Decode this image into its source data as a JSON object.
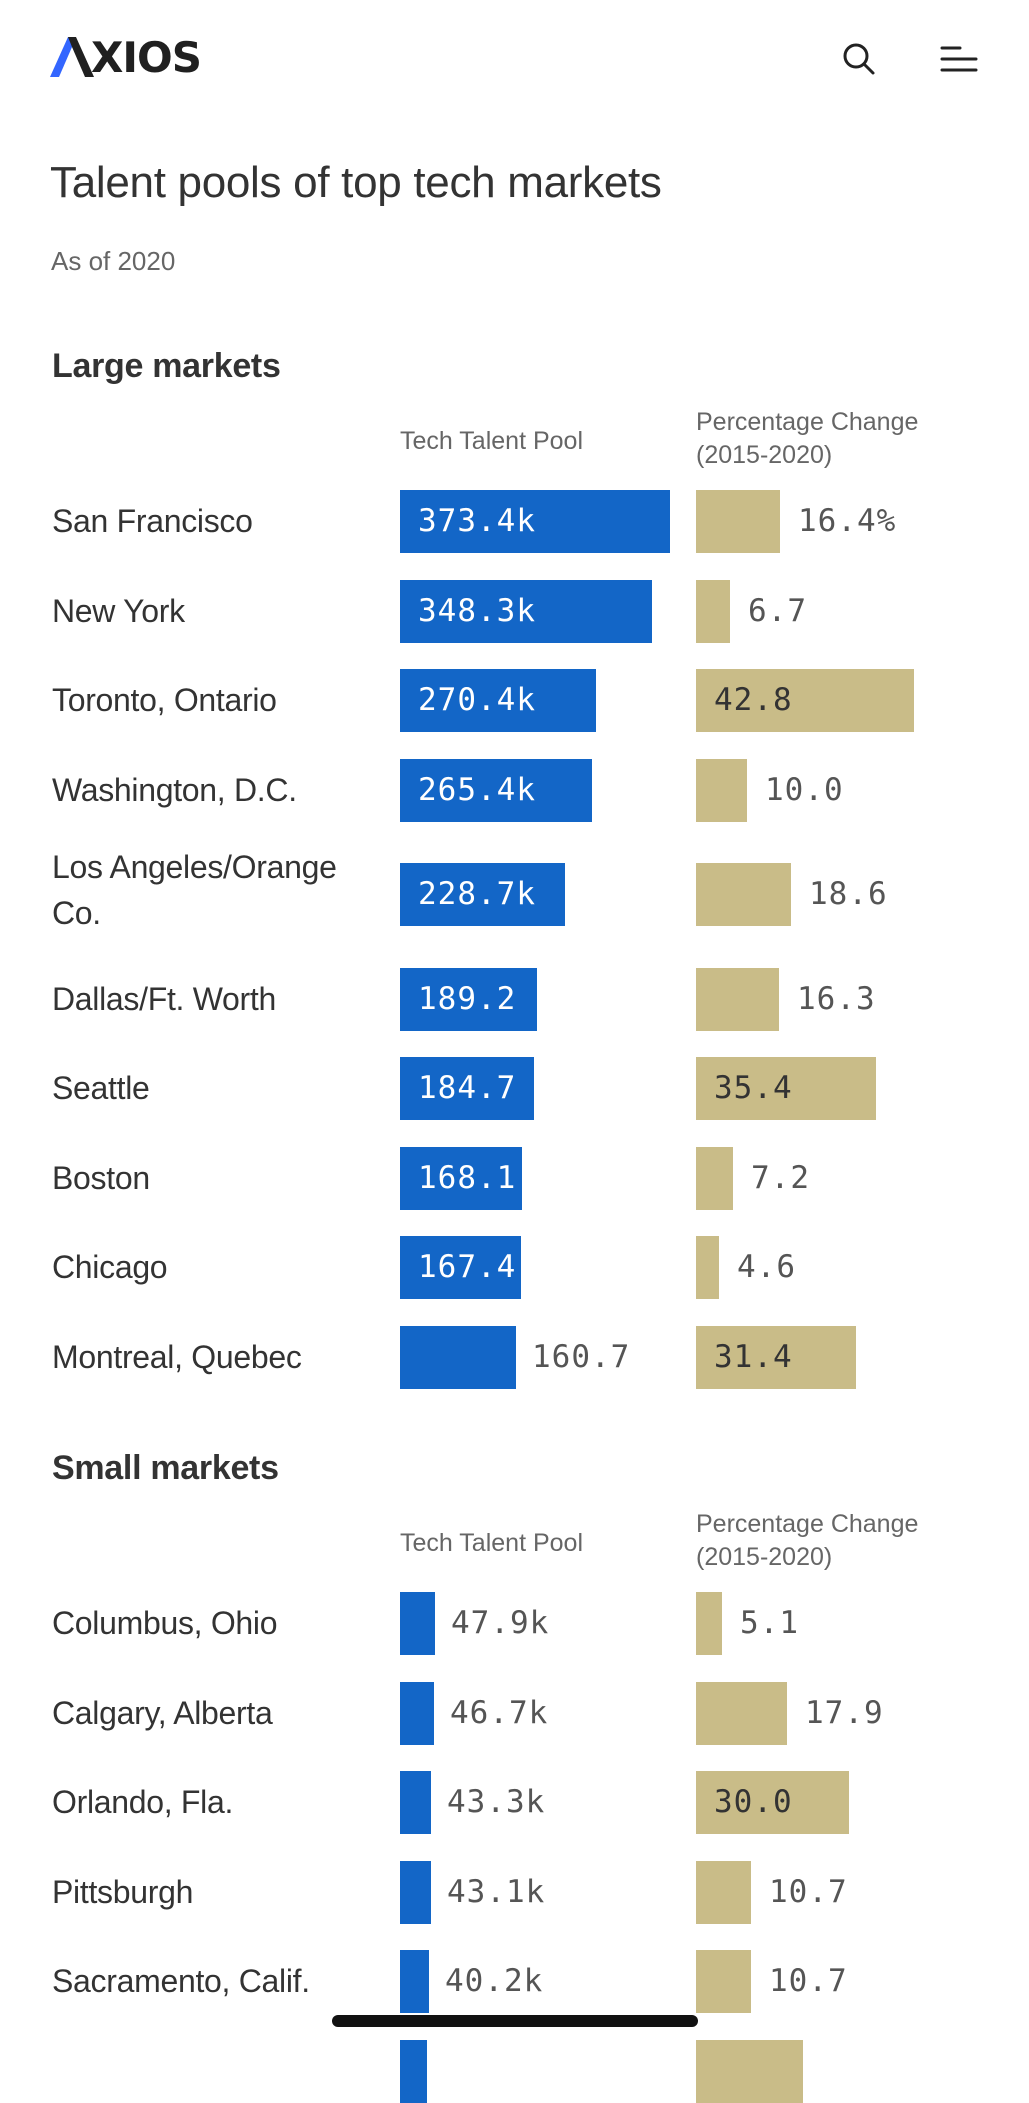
{
  "header": {
    "logo_text": "XIOS",
    "logo_full": "AXIOS",
    "accent_color": "#3366ff"
  },
  "icons": {
    "search": "search-icon",
    "menu": "menu-icon"
  },
  "title": "Talent pools of top tech markets",
  "subtitle": "As of 2020",
  "colors": {
    "blue_bar": "#1366c7",
    "gold_bar": "#c9bc88",
    "text": "#333333",
    "muted": "#666666"
  },
  "sections": [
    {
      "heading": "Large markets",
      "col_pool": "Tech Talent Pool",
      "col_change_line1": "Percentage Change",
      "col_change_line2": "(2015-2020)",
      "pool_max": 373.4,
      "change_max": 42.8,
      "rows": [
        {
          "label": "San Francisco",
          "pool": 373.4,
          "pool_label": "373.4k",
          "change": 16.4,
          "change_label": "16.4%"
        },
        {
          "label": "New York",
          "pool": 348.3,
          "pool_label": "348.3k",
          "change": 6.7,
          "change_label": "6.7"
        },
        {
          "label": "Toronto, Ontario",
          "pool": 270.4,
          "pool_label": "270.4k",
          "change": 42.8,
          "change_label": "42.8"
        },
        {
          "label": "Washington, D.C.",
          "pool": 265.4,
          "pool_label": "265.4k",
          "change": 10.0,
          "change_label": "10.0"
        },
        {
          "label": "Los Angeles/Orange Co.",
          "label_line1": "Los Angeles/Orange",
          "label_line2": "Co.",
          "pool": 228.7,
          "pool_label": "228.7k",
          "change": 18.6,
          "change_label": "18.6"
        },
        {
          "label": "Dallas/Ft. Worth",
          "pool": 189.2,
          "pool_label": "189.2",
          "change": 16.3,
          "change_label": "16.3"
        },
        {
          "label": "Seattle",
          "pool": 184.7,
          "pool_label": "184.7",
          "change": 35.4,
          "change_label": "35.4"
        },
        {
          "label": "Boston",
          "pool": 168.1,
          "pool_label": "168.1",
          "change": 7.2,
          "change_label": "7.2"
        },
        {
          "label": "Chicago",
          "pool": 167.4,
          "pool_label": "167.4",
          "change": 4.6,
          "change_label": "4.6"
        },
        {
          "label": "Montreal, Quebec",
          "pool": 160.7,
          "pool_label": "160.7",
          "change": 31.4,
          "change_label": "31.4"
        }
      ]
    },
    {
      "heading": "Small markets",
      "col_pool": "Tech Talent Pool",
      "col_change_line1": "Percentage Change",
      "col_change_line2": "(2015-2020)",
      "pool_max": 373.4,
      "change_max": 42.8,
      "rows": [
        {
          "label": "Columbus, Ohio",
          "pool": 47.9,
          "pool_label": "47.9k",
          "change": 5.1,
          "change_label": "5.1"
        },
        {
          "label": "Calgary, Alberta",
          "pool": 46.7,
          "pool_label": "46.7k",
          "change": 17.9,
          "change_label": "17.9"
        },
        {
          "label": "Orlando, Fla.",
          "pool": 43.3,
          "pool_label": "43.3k",
          "change": 30.0,
          "change_label": "30.0"
        },
        {
          "label": "Pittsburgh",
          "pool": 43.1,
          "pool_label": "43.1k",
          "change": 10.7,
          "change_label": "10.7"
        },
        {
          "label": "Sacramento, Calif.",
          "pool": 40.2,
          "pool_label": "40.2k",
          "change": 10.7,
          "change_label": "10.7"
        },
        {
          "label": "",
          "pool": 38.0,
          "pool_label": "",
          "change": 21.0,
          "change_label": ""
        }
      ]
    }
  ]
}
